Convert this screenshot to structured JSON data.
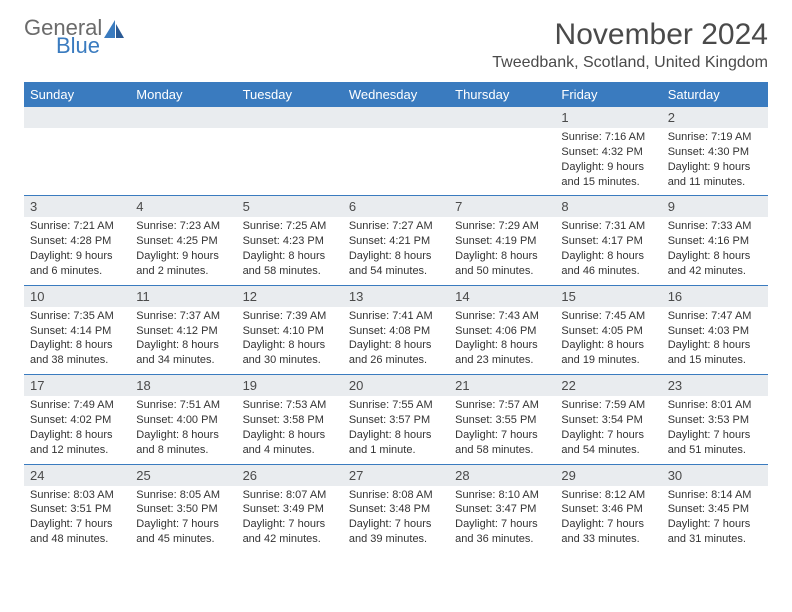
{
  "logo": {
    "word1": "General",
    "word2": "Blue"
  },
  "title": "November 2024",
  "location": "Tweedbank, Scotland, United Kingdom",
  "colors": {
    "header_bg": "#3a7bbf",
    "header_text": "#ffffff",
    "daynum_bg": "#e9ecef",
    "text": "#333333",
    "logo_gray": "#6b6b6b",
    "logo_blue": "#3a7bbf"
  },
  "day_names": [
    "Sunday",
    "Monday",
    "Tuesday",
    "Wednesday",
    "Thursday",
    "Friday",
    "Saturday"
  ],
  "weeks": [
    [
      {
        "n": "",
        "sr": "",
        "ss": "",
        "dl": ""
      },
      {
        "n": "",
        "sr": "",
        "ss": "",
        "dl": ""
      },
      {
        "n": "",
        "sr": "",
        "ss": "",
        "dl": ""
      },
      {
        "n": "",
        "sr": "",
        "ss": "",
        "dl": ""
      },
      {
        "n": "",
        "sr": "",
        "ss": "",
        "dl": ""
      },
      {
        "n": "1",
        "sr": "Sunrise: 7:16 AM",
        "ss": "Sunset: 4:32 PM",
        "dl": "Daylight: 9 hours and 15 minutes."
      },
      {
        "n": "2",
        "sr": "Sunrise: 7:19 AM",
        "ss": "Sunset: 4:30 PM",
        "dl": "Daylight: 9 hours and 11 minutes."
      }
    ],
    [
      {
        "n": "3",
        "sr": "Sunrise: 7:21 AM",
        "ss": "Sunset: 4:28 PM",
        "dl": "Daylight: 9 hours and 6 minutes."
      },
      {
        "n": "4",
        "sr": "Sunrise: 7:23 AM",
        "ss": "Sunset: 4:25 PM",
        "dl": "Daylight: 9 hours and 2 minutes."
      },
      {
        "n": "5",
        "sr": "Sunrise: 7:25 AM",
        "ss": "Sunset: 4:23 PM",
        "dl": "Daylight: 8 hours and 58 minutes."
      },
      {
        "n": "6",
        "sr": "Sunrise: 7:27 AM",
        "ss": "Sunset: 4:21 PM",
        "dl": "Daylight: 8 hours and 54 minutes."
      },
      {
        "n": "7",
        "sr": "Sunrise: 7:29 AM",
        "ss": "Sunset: 4:19 PM",
        "dl": "Daylight: 8 hours and 50 minutes."
      },
      {
        "n": "8",
        "sr": "Sunrise: 7:31 AM",
        "ss": "Sunset: 4:17 PM",
        "dl": "Daylight: 8 hours and 46 minutes."
      },
      {
        "n": "9",
        "sr": "Sunrise: 7:33 AM",
        "ss": "Sunset: 4:16 PM",
        "dl": "Daylight: 8 hours and 42 minutes."
      }
    ],
    [
      {
        "n": "10",
        "sr": "Sunrise: 7:35 AM",
        "ss": "Sunset: 4:14 PM",
        "dl": "Daylight: 8 hours and 38 minutes."
      },
      {
        "n": "11",
        "sr": "Sunrise: 7:37 AM",
        "ss": "Sunset: 4:12 PM",
        "dl": "Daylight: 8 hours and 34 minutes."
      },
      {
        "n": "12",
        "sr": "Sunrise: 7:39 AM",
        "ss": "Sunset: 4:10 PM",
        "dl": "Daylight: 8 hours and 30 minutes."
      },
      {
        "n": "13",
        "sr": "Sunrise: 7:41 AM",
        "ss": "Sunset: 4:08 PM",
        "dl": "Daylight: 8 hours and 26 minutes."
      },
      {
        "n": "14",
        "sr": "Sunrise: 7:43 AM",
        "ss": "Sunset: 4:06 PM",
        "dl": "Daylight: 8 hours and 23 minutes."
      },
      {
        "n": "15",
        "sr": "Sunrise: 7:45 AM",
        "ss": "Sunset: 4:05 PM",
        "dl": "Daylight: 8 hours and 19 minutes."
      },
      {
        "n": "16",
        "sr": "Sunrise: 7:47 AM",
        "ss": "Sunset: 4:03 PM",
        "dl": "Daylight: 8 hours and 15 minutes."
      }
    ],
    [
      {
        "n": "17",
        "sr": "Sunrise: 7:49 AM",
        "ss": "Sunset: 4:02 PM",
        "dl": "Daylight: 8 hours and 12 minutes."
      },
      {
        "n": "18",
        "sr": "Sunrise: 7:51 AM",
        "ss": "Sunset: 4:00 PM",
        "dl": "Daylight: 8 hours and 8 minutes."
      },
      {
        "n": "19",
        "sr": "Sunrise: 7:53 AM",
        "ss": "Sunset: 3:58 PM",
        "dl": "Daylight: 8 hours and 4 minutes."
      },
      {
        "n": "20",
        "sr": "Sunrise: 7:55 AM",
        "ss": "Sunset: 3:57 PM",
        "dl": "Daylight: 8 hours and 1 minute."
      },
      {
        "n": "21",
        "sr": "Sunrise: 7:57 AM",
        "ss": "Sunset: 3:55 PM",
        "dl": "Daylight: 7 hours and 58 minutes."
      },
      {
        "n": "22",
        "sr": "Sunrise: 7:59 AM",
        "ss": "Sunset: 3:54 PM",
        "dl": "Daylight: 7 hours and 54 minutes."
      },
      {
        "n": "23",
        "sr": "Sunrise: 8:01 AM",
        "ss": "Sunset: 3:53 PM",
        "dl": "Daylight: 7 hours and 51 minutes."
      }
    ],
    [
      {
        "n": "24",
        "sr": "Sunrise: 8:03 AM",
        "ss": "Sunset: 3:51 PM",
        "dl": "Daylight: 7 hours and 48 minutes."
      },
      {
        "n": "25",
        "sr": "Sunrise: 8:05 AM",
        "ss": "Sunset: 3:50 PM",
        "dl": "Daylight: 7 hours and 45 minutes."
      },
      {
        "n": "26",
        "sr": "Sunrise: 8:07 AM",
        "ss": "Sunset: 3:49 PM",
        "dl": "Daylight: 7 hours and 42 minutes."
      },
      {
        "n": "27",
        "sr": "Sunrise: 8:08 AM",
        "ss": "Sunset: 3:48 PM",
        "dl": "Daylight: 7 hours and 39 minutes."
      },
      {
        "n": "28",
        "sr": "Sunrise: 8:10 AM",
        "ss": "Sunset: 3:47 PM",
        "dl": "Daylight: 7 hours and 36 minutes."
      },
      {
        "n": "29",
        "sr": "Sunrise: 8:12 AM",
        "ss": "Sunset: 3:46 PM",
        "dl": "Daylight: 7 hours and 33 minutes."
      },
      {
        "n": "30",
        "sr": "Sunrise: 8:14 AM",
        "ss": "Sunset: 3:45 PM",
        "dl": "Daylight: 7 hours and 31 minutes."
      }
    ]
  ]
}
